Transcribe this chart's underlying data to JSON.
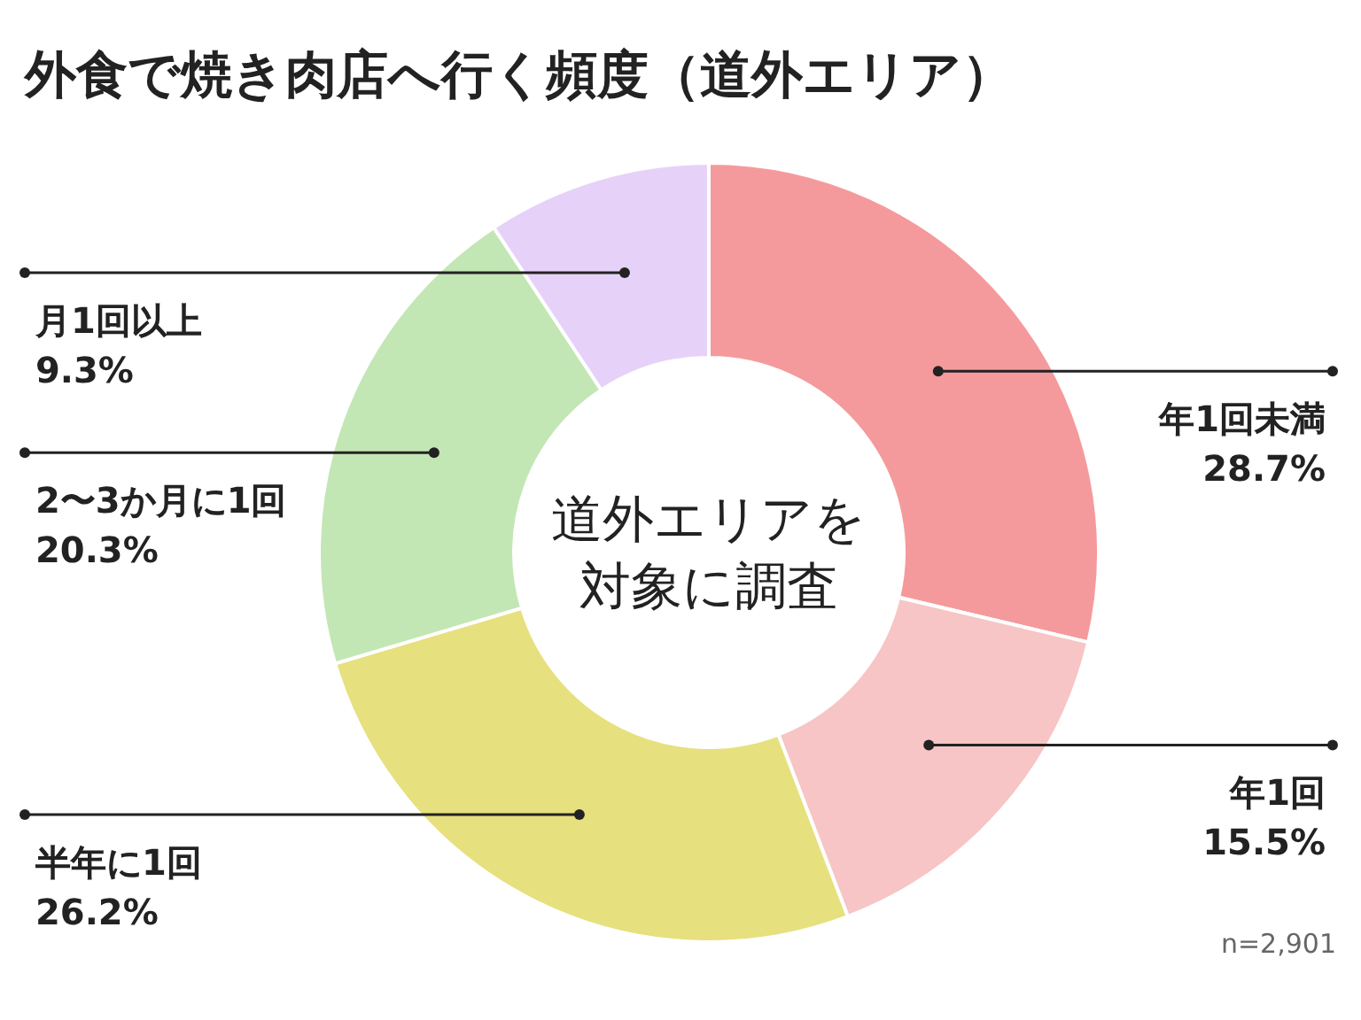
{
  "chart_data": {
    "type": "donut",
    "title": "外食で焼き肉店へ行く頻度（道外エリア）",
    "categories": [
      "年1回未満",
      "年1回",
      "半年に1回",
      "2〜3か月に1回",
      "月1回以上"
    ],
    "values": [
      28.7,
      15.5,
      26.2,
      20.3,
      9.3
    ],
    "value_labels": [
      "28.7%",
      "15.5%",
      "26.2%",
      "20.3%",
      "9.3%"
    ],
    "colors": [
      "#f59a9c",
      "#f7c5c5",
      "#e6e07e",
      "#c3e6b5",
      "#e6d2f8"
    ],
    "annotations": [
      "道外エリアを",
      "対象に調査",
      "n=2,901"
    ]
  }
}
